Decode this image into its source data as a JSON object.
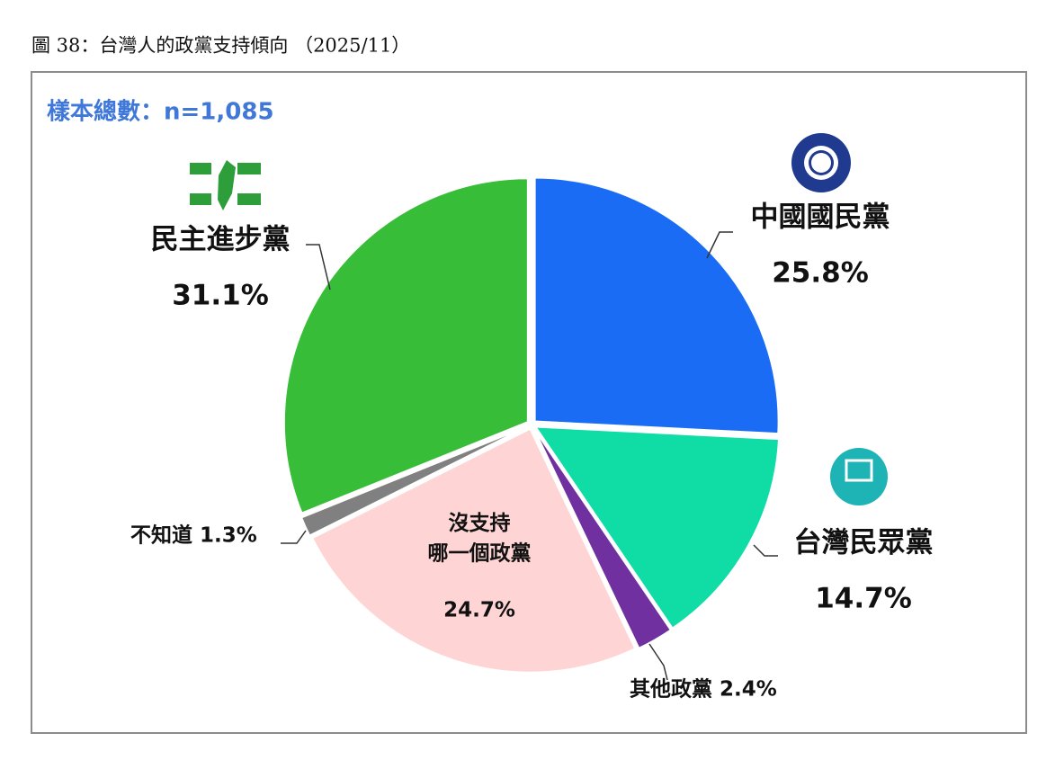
{
  "title": "圖 38：台灣人的政黨支持傾向 （2025/11）",
  "chart_data": {
    "type": "pie",
    "subtitle": "樣本總數：n=1,085",
    "categories": [
      "中國國民黨",
      "台灣民眾黨",
      "其他政黨",
      "沒支持\n哪一個政黨",
      "不知道",
      "民主進步黨"
    ],
    "values": [
      25.8,
      14.7,
      2.4,
      24.7,
      1.3,
      31.1
    ],
    "value_labels": [
      "25.8%",
      "14.7%",
      "2.4%",
      "24.7%",
      "1.3%",
      "31.1%"
    ],
    "colors": [
      "#1a6cf4",
      "#10dca6",
      "#7030a0",
      "#fed4d4",
      "#808080",
      "#38bd38"
    ]
  }
}
